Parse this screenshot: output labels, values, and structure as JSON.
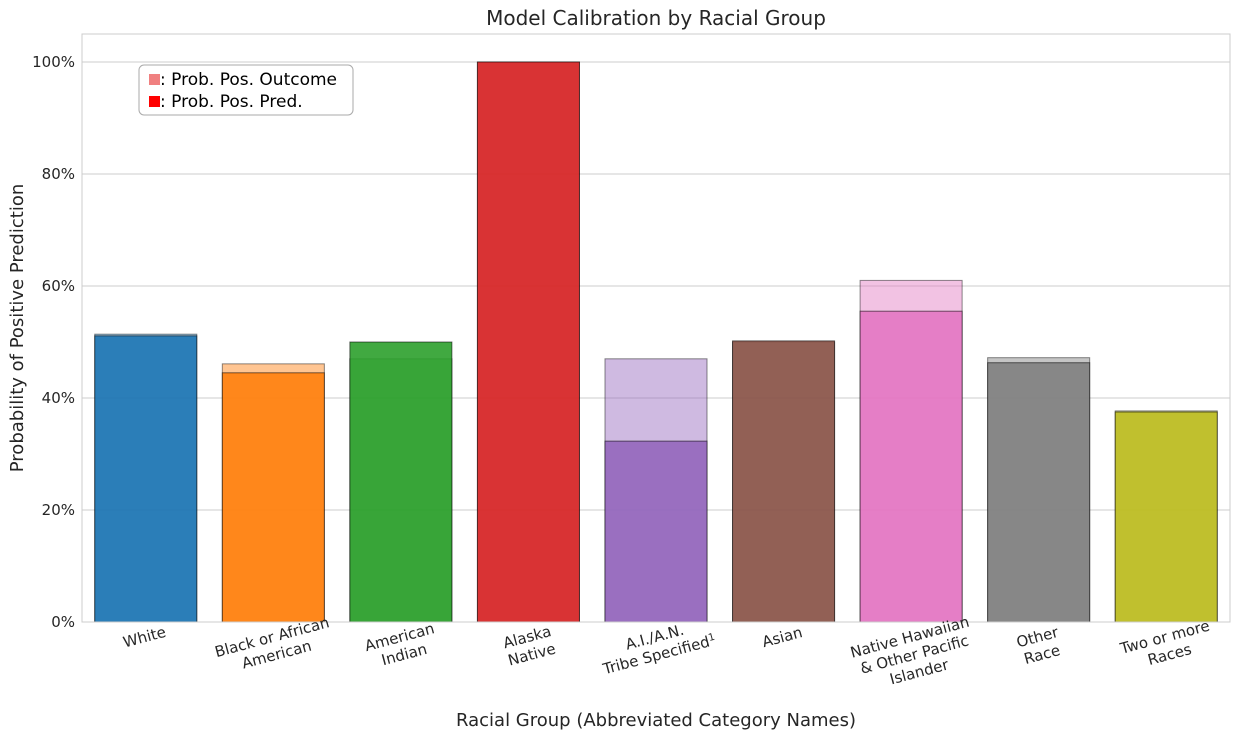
{
  "chart_data": {
    "type": "bar",
    "title": "Model Calibration by Racial Group",
    "xlabel": "Racial Group (Abbreviated Category Names)",
    "ylabel": "Probability of Positive Prediction",
    "ylim": [
      0,
      1.05
    ],
    "y_ticks": [
      0,
      0.2,
      0.4,
      0.6,
      0.8,
      1.0
    ],
    "y_tick_labels": [
      "0%",
      "20%",
      "40%",
      "60%",
      "80%",
      "100%"
    ],
    "grid": true,
    "categories": [
      "White",
      "Black or African American",
      "American Indian",
      "Alaska Native",
      "A.I./A.N. Tribe Specified¹",
      "Asian",
      "Native Hawaiian & Other Pacific Islander",
      "Other Race",
      "Two or more Races"
    ],
    "category_label_lines": [
      [
        "White"
      ],
      [
        "Black or African",
        "American"
      ],
      [
        "American",
        "Indian"
      ],
      [
        "Alaska",
        "Native"
      ],
      [
        "A.I./A.N.",
        "Tribe Specified¹"
      ],
      [
        "Asian"
      ],
      [
        "Native Hawaiian",
        "& Other Pacific",
        "Islander"
      ],
      [
        "Other",
        "Race"
      ],
      [
        "Two or more",
        "Races"
      ]
    ],
    "colors": [
      "#1f77b4",
      "#ff7f0e",
      "#2ca02c",
      "#d62728",
      "#9467bd",
      "#8c564b",
      "#e377c2",
      "#7f7f7f",
      "#bcbd22"
    ],
    "series": [
      {
        "name": ": Prob. Pos. Outcome",
        "values": [
          0.514,
          0.461,
          0.47,
          1.0,
          0.47,
          0.5,
          0.61,
          0.472,
          0.377
        ],
        "opacity": 0.45
      },
      {
        "name": ": Prob. Pos. Pred.",
        "values": [
          0.511,
          0.445,
          0.5,
          1.0,
          0.323,
          0.502,
          0.555,
          0.463,
          0.375
        ],
        "opacity": 0.9
      }
    ],
    "legend": {
      "placement": "top-left",
      "items": [
        {
          "label": ": Prob. Pos. Outcome",
          "color": "#f08080"
        },
        {
          "label": ": Prob. Pos. Pred.",
          "color": "#ff0000"
        }
      ]
    }
  }
}
